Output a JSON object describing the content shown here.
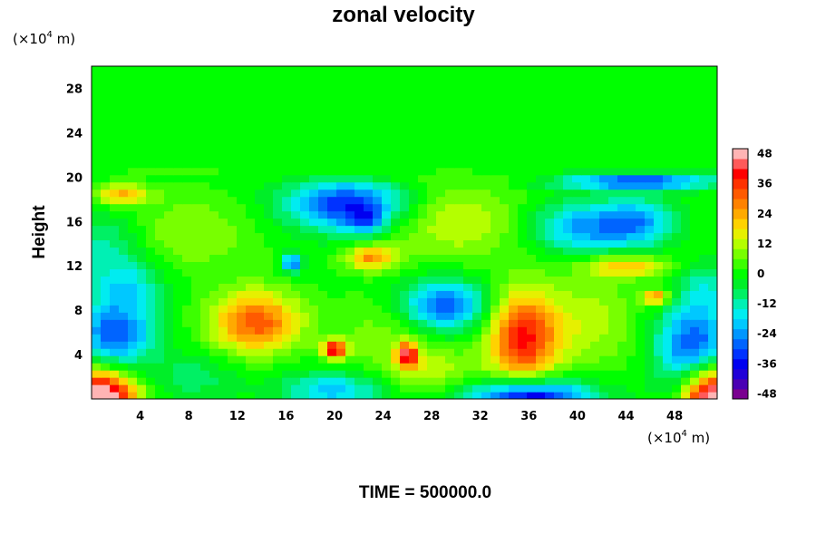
{
  "chart_data": {
    "type": "heatmap",
    "title": "zonal velocity",
    "ylabel": "Height",
    "x_unit": {
      "prefix": "(×10",
      "exp": "4",
      "suffix": " m)"
    },
    "y_unit": {
      "prefix": "(×10",
      "exp": "4",
      "suffix": " m)"
    },
    "xlim": [
      0,
      51.5
    ],
    "ylim": [
      0,
      30
    ],
    "x_ticks": [
      {
        "value": 4,
        "label": "4"
      },
      {
        "value": 8,
        "label": "8"
      },
      {
        "value": 12,
        "label": "12"
      },
      {
        "value": 16,
        "label": "16"
      },
      {
        "value": 20,
        "label": "20"
      },
      {
        "value": 24,
        "label": "24"
      },
      {
        "value": 28,
        "label": "28"
      },
      {
        "value": 32,
        "label": "32"
      },
      {
        "value": 36,
        "label": "36"
      },
      {
        "value": 40,
        "label": "40"
      },
      {
        "value": 44,
        "label": "44"
      },
      {
        "value": 48,
        "label": "48"
      }
    ],
    "y_ticks": [
      {
        "value": 4,
        "label": "4"
      },
      {
        "value": 8,
        "label": "8"
      },
      {
        "value": 12,
        "label": "12"
      },
      {
        "value": 16,
        "label": "16"
      },
      {
        "value": 20,
        "label": "20"
      },
      {
        "value": 24,
        "label": "24"
      },
      {
        "value": 28,
        "label": "28"
      }
    ],
    "colorbar": {
      "min": -50,
      "max": 50,
      "step": 4,
      "ticks": [
        {
          "value": 48,
          "label": "48"
        },
        {
          "value": 36,
          "label": "36"
        },
        {
          "value": 24,
          "label": "24"
        },
        {
          "value": 12,
          "label": "12"
        },
        {
          "value": 0,
          "label": "0"
        },
        {
          "value": -12,
          "label": "-12"
        },
        {
          "value": -24,
          "label": "-24"
        },
        {
          "value": -36,
          "label": "-36"
        },
        {
          "value": -48,
          "label": "-48"
        }
      ],
      "colors": [
        "#7a0090",
        "#4a00b4",
        "#2000d8",
        "#0000f0",
        "#0032ff",
        "#0064ff",
        "#0096ff",
        "#00c8ff",
        "#00ecf0",
        "#00f0b4",
        "#00f064",
        "#00ee28",
        "#00ff00",
        "#3cff00",
        "#78ff00",
        "#b4ff00",
        "#e6f000",
        "#ffd200",
        "#ffaa00",
        "#ff8200",
        "#ff5a00",
        "#ff3200",
        "#ff0000",
        "#ff5a5a",
        "#ffb4b4"
      ]
    },
    "features": [
      {
        "x": 13.5,
        "y": 7,
        "sx": 2.6,
        "sy": 2.0,
        "v": 33
      },
      {
        "x": 35.5,
        "y": 5.5,
        "sx": 2.0,
        "sy": 3.0,
        "v": 38
      },
      {
        "x": 2,
        "y": 6,
        "sx": 2.2,
        "sy": 2.2,
        "v": -30
      },
      {
        "x": 49.5,
        "y": 5,
        "sx": 2.2,
        "sy": 2.5,
        "v": -30
      },
      {
        "x": 21,
        "y": 17.5,
        "sx": 3.5,
        "sy": 1.6,
        "v": -34
      },
      {
        "x": 22.5,
        "y": 16,
        "sx": 1.0,
        "sy": 0.9,
        "v": -16
      },
      {
        "x": 29,
        "y": 8.5,
        "sx": 2.5,
        "sy": 1.6,
        "v": -30
      },
      {
        "x": 40.5,
        "y": 15.5,
        "sx": 3.0,
        "sy": 1.6,
        "v": -24
      },
      {
        "x": 45,
        "y": 16,
        "sx": 2.0,
        "sy": 1.5,
        "v": -20
      },
      {
        "x": 45,
        "y": 19.7,
        "sx": 4.5,
        "sy": 0.5,
        "v": -34
      },
      {
        "x": 36,
        "y": 0,
        "sx": 3.5,
        "sy": 1.3,
        "v": -44
      },
      {
        "x": 20,
        "y": 0.8,
        "sx": 3.0,
        "sy": 1.2,
        "v": -20
      },
      {
        "x": 0.8,
        "y": 0,
        "sx": 2.0,
        "sy": 1.8,
        "v": 58
      },
      {
        "x": 51.2,
        "y": 0,
        "sx": 1.6,
        "sy": 2.0,
        "v": 58
      },
      {
        "x": 2.5,
        "y": 18.5,
        "sx": 1.6,
        "sy": 0.7,
        "v": 22
      },
      {
        "x": 23,
        "y": 12.8,
        "sx": 1.5,
        "sy": 0.8,
        "v": 26
      },
      {
        "x": 44,
        "y": 12,
        "sx": 2.4,
        "sy": 0.7,
        "v": 22
      },
      {
        "x": 20,
        "y": 4.5,
        "sx": 0.7,
        "sy": 0.6,
        "v": 42
      },
      {
        "x": 26,
        "y": 4,
        "sx": 0.6,
        "sy": 0.8,
        "v": 38
      },
      {
        "x": 46.5,
        "y": 9.2,
        "sx": 0.8,
        "sy": 0.5,
        "v": 28
      },
      {
        "x": 16.5,
        "y": 12.3,
        "sx": 0.6,
        "sy": 0.6,
        "v": -30
      },
      {
        "x": 1,
        "y": 14,
        "sx": 2.5,
        "sy": 2.0,
        "v": -12
      },
      {
        "x": 30,
        "y": 16,
        "sx": 4.0,
        "sy": 2.5,
        "v": 14
      },
      {
        "x": 8,
        "y": 15,
        "sx": 4.0,
        "sy": 2.5,
        "v": 10
      },
      {
        "x": 41,
        "y": 7,
        "sx": 3.0,
        "sy": 3.0,
        "v": 12
      },
      {
        "x": 24,
        "y": 6,
        "sx": 3.0,
        "sy": 2.5,
        "v": 8
      },
      {
        "x": 8.5,
        "y": 2,
        "sx": 2.5,
        "sy": 1.5,
        "v": -8
      },
      {
        "x": 28,
        "y": 2.5,
        "sx": 3.0,
        "sy": 1.5,
        "v": 12
      },
      {
        "x": 3,
        "y": 10.5,
        "sx": 2.0,
        "sy": 1.5,
        "v": -14
      },
      {
        "x": 50.5,
        "y": 10,
        "sx": 1.5,
        "sy": 1.5,
        "v": -12
      }
    ]
  },
  "footer": {
    "time_text": "TIME = 500000.0"
  }
}
